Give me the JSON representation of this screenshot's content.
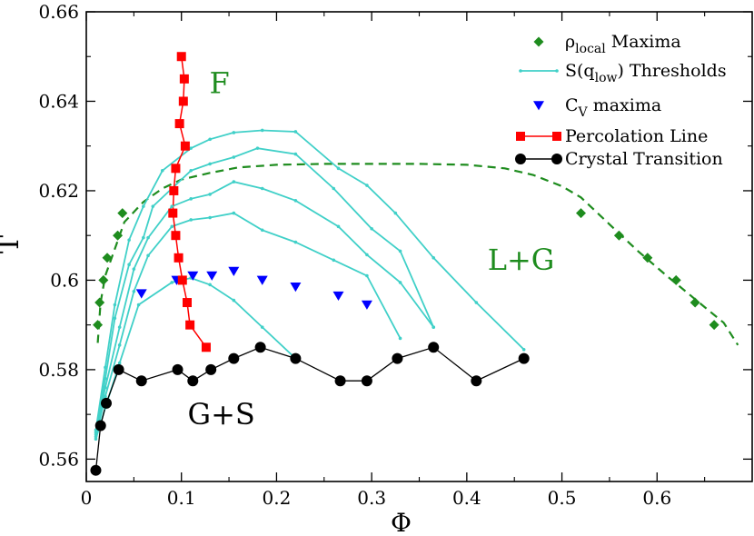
{
  "chart_data": {
    "type": "scatter",
    "xlabel": "Φ",
    "ylabel": "T",
    "xlim": [
      0,
      0.7
    ],
    "ylim": [
      0.555,
      0.66
    ],
    "x_ticks": [
      0,
      0.1,
      0.2,
      0.3,
      0.4,
      0.5,
      0.6
    ],
    "x_tick_labels": [
      "0",
      "0.1",
      "0.2",
      "0.3",
      "0.4",
      "0.5",
      "0.6"
    ],
    "y_ticks": [
      0.56,
      0.58,
      0.6,
      0.62,
      0.64,
      0.66
    ],
    "y_tick_labels": [
      "0.56",
      "0.58",
      "0.6",
      "0.62",
      "0.64",
      "0.66"
    ],
    "grid": false,
    "legend_position": "top-right",
    "legend": [
      {
        "label_main": "ρ",
        "label_sub": "local",
        "label_rest": " Maxima",
        "series": "rho_local"
      },
      {
        "label_main": "S(q",
        "label_sub": "low",
        "label_rest": ") Thresholds",
        "series": "sq_thresholds"
      },
      {
        "label_main": "C",
        "label_sub": "V",
        "label_rest": "  maxima",
        "series": "cv_maxima"
      },
      {
        "label_main": "Percolation Line",
        "label_sub": "",
        "label_rest": "",
        "series": "percolation"
      },
      {
        "label_main": "Crystal Transition",
        "label_sub": "",
        "label_rest": "",
        "series": "crystal"
      }
    ],
    "regions": [
      {
        "text": "F",
        "x": 0.14,
        "y": 0.6435
      },
      {
        "text": "L+G",
        "x": 0.457,
        "y": 0.604
      },
      {
        "text": "G+S",
        "x": 0.142,
        "y": 0.5695
      }
    ],
    "colors": {
      "rho_local": "#1e8c1e",
      "sq_thresholds": "#40d0c8",
      "cv_maxima": "#0000ff",
      "percolation": "#ff0000",
      "crystal": "#000000"
    },
    "series": {
      "rho_local": {
        "marker": "diamond",
        "points": [
          [
            0.012,
            0.59
          ],
          [
            0.014,
            0.595
          ],
          [
            0.018,
            0.6
          ],
          [
            0.022,
            0.605
          ],
          [
            0.033,
            0.61
          ],
          [
            0.038,
            0.615
          ],
          [
            0.52,
            0.615
          ],
          [
            0.56,
            0.61
          ],
          [
            0.59,
            0.605
          ],
          [
            0.62,
            0.6
          ],
          [
            0.64,
            0.595
          ],
          [
            0.66,
            0.59
          ]
        ],
        "fit_curve": [
          [
            0.012,
            0.586
          ],
          [
            0.015,
            0.595
          ],
          [
            0.02,
            0.601
          ],
          [
            0.03,
            0.607
          ],
          [
            0.04,
            0.613
          ],
          [
            0.06,
            0.6175
          ],
          [
            0.08,
            0.6205
          ],
          [
            0.1,
            0.6225
          ],
          [
            0.13,
            0.624
          ],
          [
            0.16,
            0.6252
          ],
          [
            0.2,
            0.6258
          ],
          [
            0.25,
            0.626
          ],
          [
            0.3,
            0.626
          ],
          [
            0.35,
            0.626
          ],
          [
            0.4,
            0.6258
          ],
          [
            0.44,
            0.625
          ],
          [
            0.47,
            0.6235
          ],
          [
            0.5,
            0.621
          ],
          [
            0.52,
            0.6185
          ],
          [
            0.55,
            0.6125
          ],
          [
            0.58,
            0.6065
          ],
          [
            0.61,
            0.601
          ],
          [
            0.63,
            0.5975
          ],
          [
            0.65,
            0.594
          ],
          [
            0.67,
            0.5905
          ],
          [
            0.685,
            0.5855
          ]
        ]
      },
      "sq_thresholds": {
        "marker": "small-dot",
        "curves": [
          [
            [
              0.01,
              0.5665
            ],
            [
              0.02,
              0.5805
            ],
            [
              0.03,
              0.5945
            ],
            [
              0.045,
              0.609
            ],
            [
              0.06,
              0.6165
            ],
            [
              0.08,
              0.6245
            ],
            [
              0.11,
              0.6295
            ],
            [
              0.13,
              0.6315
            ],
            [
              0.155,
              0.633
            ],
            [
              0.185,
              0.6335
            ],
            [
              0.22,
              0.6332
            ],
            [
              0.265,
              0.625
            ],
            [
              0.295,
              0.6212
            ],
            [
              0.325,
              0.615
            ],
            [
              0.365,
              0.605
            ],
            [
              0.41,
              0.595
            ],
            [
              0.46,
              0.5845
            ]
          ],
          [
            [
              0.01,
              0.566
            ],
            [
              0.02,
              0.578
            ],
            [
              0.03,
              0.5915
            ],
            [
              0.045,
              0.6035
            ],
            [
              0.06,
              0.6095
            ],
            [
              0.07,
              0.6165
            ],
            [
              0.09,
              0.6205
            ],
            [
              0.11,
              0.6245
            ],
            [
              0.13,
              0.626
            ],
            [
              0.155,
              0.6275
            ],
            [
              0.18,
              0.6295
            ],
            [
              0.22,
              0.6282
            ],
            [
              0.26,
              0.6205
            ],
            [
              0.3,
              0.6115
            ],
            [
              0.33,
              0.6065
            ],
            [
              0.365,
              0.5895
            ]
          ],
          [
            [
              0.01,
              0.5655
            ],
            [
              0.02,
              0.576
            ],
            [
              0.035,
              0.5895
            ],
            [
              0.05,
              0.6025
            ],
            [
              0.065,
              0.6095
            ],
            [
              0.09,
              0.6165
            ],
            [
              0.11,
              0.6182
            ],
            [
              0.13,
              0.6192
            ],
            [
              0.155,
              0.622
            ],
            [
              0.185,
              0.6205
            ],
            [
              0.22,
              0.6178
            ],
            [
              0.265,
              0.612
            ],
            [
              0.295,
              0.6057
            ],
            [
              0.33,
              0.5995
            ],
            [
              0.365,
              0.5895
            ]
          ],
          [
            [
              0.01,
              0.565
            ],
            [
              0.02,
              0.574
            ],
            [
              0.035,
              0.5855
            ],
            [
              0.05,
              0.5975
            ],
            [
              0.065,
              0.6055
            ],
            [
              0.09,
              0.612
            ],
            [
              0.11,
              0.6135
            ],
            [
              0.13,
              0.614
            ],
            [
              0.155,
              0.615
            ],
            [
              0.185,
              0.6112
            ],
            [
              0.22,
              0.6085
            ],
            [
              0.26,
              0.6045
            ],
            [
              0.295,
              0.601
            ],
            [
              0.33,
              0.587
            ]
          ],
          [
            [
              0.01,
              0.5645
            ],
            [
              0.02,
              0.5715
            ],
            [
              0.035,
              0.5815
            ],
            [
              0.055,
              0.5945
            ],
            [
              0.09,
              0.5995
            ],
            [
              0.11,
              0.6005
            ],
            [
              0.13,
              0.599
            ],
            [
              0.155,
              0.5955
            ],
            [
              0.185,
              0.5895
            ],
            [
              0.22,
              0.5825
            ]
          ]
        ]
      },
      "cv_maxima": {
        "marker": "triangle-down",
        "points": [
          [
            0.058,
            0.597
          ],
          [
            0.095,
            0.6
          ],
          [
            0.112,
            0.601
          ],
          [
            0.132,
            0.601
          ],
          [
            0.155,
            0.602
          ],
          [
            0.185,
            0.6
          ],
          [
            0.22,
            0.5985
          ],
          [
            0.265,
            0.5965
          ],
          [
            0.295,
            0.5945
          ]
        ]
      },
      "percolation": {
        "marker": "square",
        "points": [
          [
            0.1,
            0.65
          ],
          [
            0.103,
            0.645
          ],
          [
            0.102,
            0.64
          ],
          [
            0.098,
            0.635
          ],
          [
            0.104,
            0.63
          ],
          [
            0.094,
            0.625
          ],
          [
            0.092,
            0.62
          ],
          [
            0.091,
            0.615
          ],
          [
            0.094,
            0.61
          ],
          [
            0.097,
            0.605
          ],
          [
            0.101,
            0.6
          ],
          [
            0.106,
            0.595
          ],
          [
            0.109,
            0.59
          ],
          [
            0.126,
            0.585
          ]
        ]
      },
      "crystal": {
        "marker": "circle",
        "points": [
          [
            0.01,
            0.5575
          ],
          [
            0.015,
            0.5675
          ],
          [
            0.021,
            0.5725
          ],
          [
            0.034,
            0.58
          ],
          [
            0.058,
            0.5775
          ],
          [
            0.096,
            0.58
          ],
          [
            0.112,
            0.5775
          ],
          [
            0.131,
            0.58
          ],
          [
            0.155,
            0.5825
          ],
          [
            0.183,
            0.585
          ],
          [
            0.22,
            0.5825
          ],
          [
            0.267,
            0.5775
          ],
          [
            0.295,
            0.5775
          ],
          [
            0.327,
            0.5825
          ],
          [
            0.365,
            0.585
          ],
          [
            0.41,
            0.5775
          ],
          [
            0.46,
            0.5825
          ]
        ]
      }
    }
  }
}
